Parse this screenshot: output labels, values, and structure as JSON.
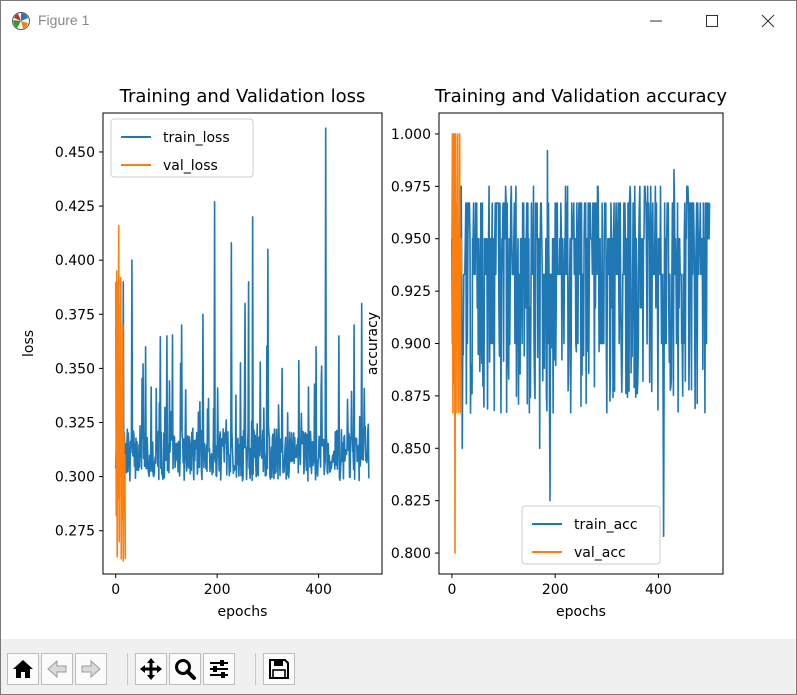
{
  "window": {
    "title": "Figure 1",
    "controls": [
      "minimize",
      "maximize",
      "close"
    ]
  },
  "toolbar": {
    "buttons": [
      {
        "name": "home",
        "icon": "home-icon"
      },
      {
        "name": "back",
        "icon": "arrow-left-icon"
      },
      {
        "name": "forward",
        "icon": "arrow-right-icon"
      },
      {
        "name": "pan",
        "icon": "move-icon"
      },
      {
        "name": "zoom",
        "icon": "magnifier-icon"
      },
      {
        "name": "configure-subplots",
        "icon": "sliders-icon"
      },
      {
        "name": "save",
        "icon": "floppy-disk-icon"
      }
    ]
  },
  "colors": {
    "train": "#1f77b4",
    "val": "#ff7f0e",
    "axis": "#000000",
    "text": "#000000"
  },
  "chart_data": [
    {
      "type": "line",
      "title": "Training and Validation loss",
      "xlabel": "epochs",
      "ylabel": "loss",
      "xlim": [
        -25,
        525
      ],
      "ylim": [
        0.255,
        0.468
      ],
      "xticks": [
        0,
        200,
        400
      ],
      "yticks": [
        0.275,
        0.3,
        0.325,
        0.35,
        0.375,
        0.4,
        0.425,
        0.45
      ],
      "ytick_labels": [
        "0.275",
        "0.300",
        "0.325",
        "0.350",
        "0.375",
        "0.400",
        "0.425",
        "0.450"
      ],
      "legend_position": "top-left",
      "series": [
        {
          "name": "train_loss",
          "epochs": 500,
          "baseline": 0.31,
          "noise": 0.012,
          "spikes": [
            [
              15,
              0.39
            ],
            [
              32,
              0.4
            ],
            [
              59,
              0.36
            ],
            [
              101,
              0.365
            ],
            [
              130,
              0.37
            ],
            [
              172,
              0.375
            ],
            [
              195,
              0.427
            ],
            [
              228,
              0.408
            ],
            [
              255,
              0.38
            ],
            [
              262,
              0.39
            ],
            [
              270,
              0.42
            ],
            [
              300,
              0.405
            ],
            [
              328,
              0.35
            ],
            [
              395,
              0.36
            ],
            [
              414,
              0.461
            ],
            [
              440,
              0.365
            ],
            [
              470,
              0.37
            ],
            [
              485,
              0.38
            ]
          ]
        },
        {
          "name": "val_loss",
          "epochs": 20,
          "values": [
            0.39,
            0.282,
            0.395,
            0.263,
            0.39,
            0.29,
            0.416,
            0.27,
            0.35,
            0.3,
            0.392,
            0.262,
            0.33,
            0.28,
            0.37,
            0.261,
            0.32,
            0.29,
            0.31,
            0.262
          ]
        }
      ]
    },
    {
      "type": "line",
      "title": "Training and Validation accuracy",
      "xlabel": "epochs",
      "ylabel": "accuracy",
      "xlim": [
        -25,
        525
      ],
      "ylim": [
        0.79,
        1.01
      ],
      "xticks": [
        0,
        200,
        400
      ],
      "yticks": [
        0.8,
        0.825,
        0.85,
        0.875,
        0.9,
        0.925,
        0.95,
        0.975,
        1.0
      ],
      "ytick_labels": [
        "0.800",
        "0.825",
        "0.850",
        "0.875",
        "0.900",
        "0.925",
        "0.950",
        "0.975",
        "1.000"
      ],
      "legend_position": "bottom-center",
      "series": [
        {
          "name": "train_acc",
          "epochs": 500,
          "levels": [
            0.9,
            0.917,
            0.933,
            0.95,
            0.967,
            0.975
          ],
          "dips": [
            [
              20,
              0.85
            ],
            [
              95,
              0.867
            ],
            [
              110,
              0.883
            ],
            [
              150,
              0.867
            ],
            [
              170,
              0.85
            ],
            [
              190,
              0.825
            ],
            [
              230,
              0.867
            ],
            [
              300,
              0.867
            ],
            [
              360,
              0.883
            ],
            [
              410,
              0.808
            ],
            [
              490,
              0.867
            ]
          ],
          "peaks": [
            [
              185,
              0.992
            ],
            [
              430,
              0.983
            ]
          ]
        },
        {
          "name": "val_acc",
          "epochs": 20,
          "values": [
            0.95,
            1.0,
            0.867,
            1.0,
            0.9,
            1.0,
            0.8,
            1.0,
            0.867,
            0.967,
            0.9,
            1.0,
            0.867,
            0.933,
            0.9,
            1.0,
            0.867,
            0.933,
            0.95,
            0.933
          ]
        }
      ]
    }
  ]
}
